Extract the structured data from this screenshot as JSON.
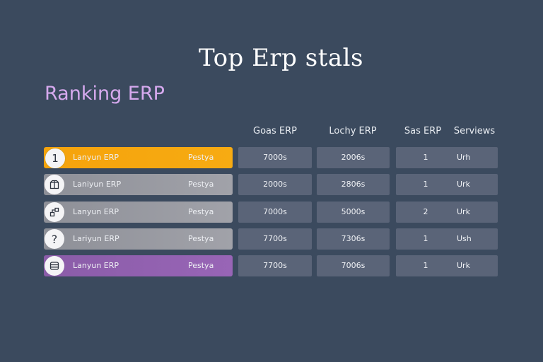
{
  "page_title": "Top Erp stals",
  "section_title": "Ranking ERP",
  "columns": [
    "Goas ERP",
    "Lochy ERP",
    "Sas ERP",
    "Serviews"
  ],
  "rows": [
    {
      "badge": "1",
      "badge_icon": "number-one",
      "name": "Lanyun ERP",
      "tag": "Pestya",
      "goas": "7000s",
      "lochy": "2006s",
      "sas": "1",
      "services": "Urh",
      "color": "#f5a60f"
    },
    {
      "badge": "",
      "badge_icon": "box-icon",
      "name": "Laniyun ERP",
      "tag": "Pestya",
      "goas": "2000s",
      "lochy": "2806s",
      "sas": "1",
      "services": "Urk",
      "color": "#9b9ca3"
    },
    {
      "badge": "",
      "badge_icon": "flow-icon",
      "name": "Lanyun ERP",
      "tag": "Pestya",
      "goas": "7000s",
      "lochy": "5000s",
      "sas": "2",
      "services": "Urk",
      "color": "#9b9ca3"
    },
    {
      "badge": "?",
      "badge_icon": "question-icon",
      "name": "Lariyun ERP",
      "tag": "Pestya",
      "goas": "7700s",
      "lochy": "7306s",
      "sas": "1",
      "services": "Ush",
      "color": "#9b9ca3"
    },
    {
      "badge": "",
      "badge_icon": "database-icon",
      "name": "Lanyun ERP",
      "tag": "Pestya",
      "goas": "7700s",
      "lochy": "7006s",
      "sas": "1",
      "services": "Urk",
      "color": "#9560b0"
    }
  ]
}
